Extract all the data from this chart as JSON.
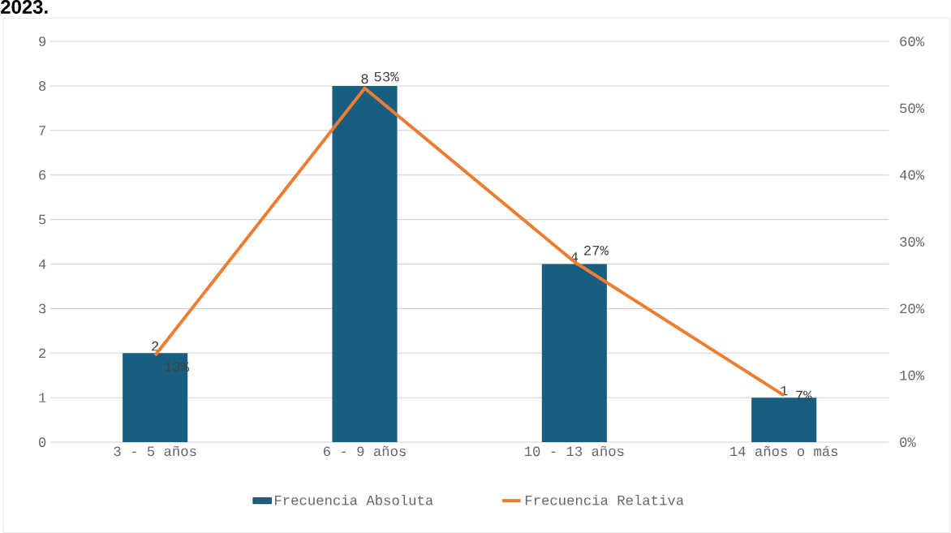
{
  "chart_data": {
    "type": "bar",
    "annotations": [
      "2023."
    ],
    "categories": [
      "3 - 5 años",
      "6 - 9 años",
      "10 - 13 años",
      "14 años o más"
    ],
    "series": [
      {
        "name": "Frecuencia Absoluta",
        "color": "#175e81",
        "values": [
          2,
          8,
          4,
          1
        ],
        "value_labels": [
          "2",
          "8",
          "4",
          "1"
        ]
      },
      {
        "name": "Frecuencia Relativa",
        "type": "line",
        "axis": "y2",
        "color": "#ed7d31",
        "values": [
          13,
          53,
          27,
          7
        ],
        "value_labels": [
          "13%",
          "53%",
          "27%",
          "7%"
        ]
      }
    ],
    "ylim": [
      0,
      9
    ],
    "yticks": [
      0,
      1,
      2,
      3,
      4,
      5,
      6,
      7,
      8,
      9
    ],
    "y2lim": [
      0,
      60
    ],
    "y2ticks": [
      {
        "value": 0,
        "label": "0%"
      },
      {
        "value": 10,
        "label": "10%"
      },
      {
        "value": 20,
        "label": "20%"
      },
      {
        "value": 30,
        "label": "30%"
      },
      {
        "value": 40,
        "label": "40%"
      },
      {
        "value": 50,
        "label": "50%"
      },
      {
        "value": 60,
        "label": "60%"
      }
    ],
    "grid": "y",
    "legend": "bottom",
    "marker": "none",
    "line_style": "solid"
  }
}
